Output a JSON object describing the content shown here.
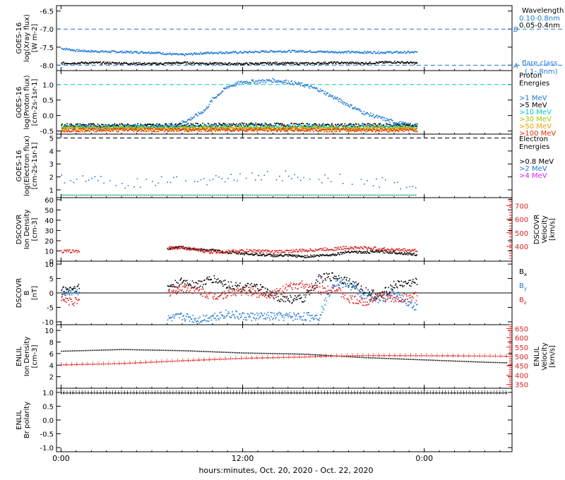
{
  "xaxis": {
    "label": "hours:minutes, Oct. 20, 2020 - Oct. 22, 2020",
    "ticks": [
      {
        "hour": 0,
        "label": "0:00"
      },
      {
        "hour": 12,
        "label": "12:00"
      },
      {
        "hour": 24,
        "label": "0:00"
      }
    ],
    "xlim_hours": [
      -0.3,
      29.8
    ]
  },
  "chart_data": [
    {
      "id": "xray",
      "type": "line",
      "ylabel": [
        "GOES-16",
        "log(Xray flux)",
        "[W m-2]"
      ],
      "ylim": [
        -8.15,
        -6.35
      ],
      "yticks": [
        "-6.5",
        "-7.0",
        "-7.5",
        "-8.0"
      ],
      "ytick_values": [
        -6.5,
        -7.0,
        -7.5,
        -8.0
      ],
      "legend_title": "Wavelength",
      "flare_lines": [
        {
          "y": -7.0,
          "label": "B"
        },
        {
          "y": -8.0,
          "label": "A"
        }
      ],
      "flare_class_label": [
        "flare class",
        "(.1-.8nm)"
      ],
      "series": [
        {
          "name": "0.10-0.8nm",
          "color": "#1e78d2",
          "x": [
            0,
            1,
            2,
            4,
            6,
            7,
            8,
            9,
            10,
            12,
            14,
            16,
            18,
            20,
            22,
            23.5
          ],
          "y": [
            -7.52,
            -7.58,
            -7.6,
            -7.62,
            -7.63,
            -7.67,
            -7.7,
            -7.66,
            -7.64,
            -7.63,
            -7.6,
            -7.6,
            -7.62,
            -7.63,
            -7.63,
            -7.63
          ]
        },
        {
          "name": "0.05-0.4nm",
          "color": "#000000",
          "x": [
            0,
            2,
            4,
            6,
            8,
            10,
            12,
            14,
            16,
            18,
            20,
            22,
            23.5
          ],
          "y": [
            -7.93,
            -7.92,
            -7.93,
            -7.95,
            -7.92,
            -7.94,
            -7.95,
            -7.93,
            -7.94,
            -7.92,
            -7.93,
            -7.9,
            -7.93
          ]
        }
      ]
    },
    {
      "id": "proton",
      "type": "scatter",
      "ylabel": [
        "GOES-16",
        "log(Proton flux)",
        "[cm-2s-1sr-1]"
      ],
      "ylim": [
        -0.6,
        1.45
      ],
      "yticks": [
        "1.0",
        "0.5",
        "0.0",
        "-0.5"
      ],
      "ytick_values": [
        1.0,
        0.5,
        0.0,
        -0.5
      ],
      "legend_title": [
        "Proton",
        "Energies"
      ],
      "ref_line": 1.0,
      "series": [
        {
          "name": ">1 MeV",
          "color": "#1e78d2",
          "x": [
            0,
            6,
            7.5,
            8.5,
            9.5,
            10,
            11,
            12,
            13,
            14,
            15,
            16,
            17,
            18,
            19,
            20,
            21,
            22,
            23.5
          ],
          "y": [
            -0.35,
            -0.33,
            -0.3,
            -0.1,
            0.2,
            0.55,
            0.95,
            1.1,
            1.12,
            1.15,
            1.1,
            1.0,
            0.85,
            0.6,
            0.35,
            0.1,
            -0.05,
            -0.2,
            -0.33
          ]
        },
        {
          "name": ">5 MeV",
          "color": "#000000",
          "x": [
            0,
            6,
            12,
            18,
            23.5
          ],
          "y": [
            -0.3,
            -0.3,
            -0.28,
            -0.3,
            -0.3
          ]
        },
        {
          "name": ">10 MeV",
          "color": "#00c8c8",
          "x": [
            0,
            6,
            12,
            18,
            23.5
          ],
          "y": [
            -0.35,
            -0.35,
            -0.34,
            -0.35,
            -0.35
          ]
        },
        {
          "name": ">30 MeV",
          "color": "#a0c800",
          "x": [
            0,
            6,
            12,
            18,
            23.5
          ],
          "y": [
            -0.4,
            -0.39,
            -0.4,
            -0.4,
            -0.4
          ]
        },
        {
          "name": ">50 MeV",
          "color": "#f0a000",
          "x": [
            0,
            6,
            12,
            18,
            23.5
          ],
          "y": [
            -0.42,
            -0.42,
            -0.41,
            -0.42,
            -0.42
          ]
        },
        {
          "name": ">100 MeV",
          "color": "#e03000",
          "x": [
            0,
            6,
            12,
            18,
            23.5
          ],
          "y": [
            -0.45,
            -0.45,
            -0.44,
            -0.45,
            -0.45
          ]
        }
      ]
    },
    {
      "id": "electron",
      "type": "scatter",
      "ylabel": [
        "GOES-16",
        "log(Electron flux)",
        "[cm-2s-1sr-1]"
      ],
      "ylim": [
        0.4,
        5.3
      ],
      "yticks": [
        "1",
        "2",
        "3",
        "4",
        "5"
      ],
      "ytick_values": [
        1,
        2,
        3,
        4,
        5
      ],
      "legend_title": [
        "Electron",
        "Energies"
      ],
      "ref_line": 5.0,
      "series": [
        {
          "name": ">0.8 MeV",
          "color": "#000000",
          "x": [],
          "y": []
        },
        {
          "name": ">2 MeV",
          "color": "#1e78d2",
          "x": [
            0,
            2,
            4,
            6,
            8,
            10,
            12,
            14,
            16,
            18,
            20,
            22,
            23.5
          ],
          "y": [
            1.8,
            2.0,
            1.5,
            1.7,
            2.0,
            1.8,
            2.0,
            2.2,
            2.0,
            1.9,
            1.7,
            1.5,
            1.3
          ]
        },
        {
          "name": ">4 MeV",
          "color": "#e020e0",
          "x": [],
          "y": []
        }
      ],
      "baseline": {
        "color": "#00a070",
        "y": 0.6
      }
    },
    {
      "id": "dscovr-density",
      "type": "line",
      "ylabel": [
        "DSCOVR",
        "Ion Density",
        "[cm-3]"
      ],
      "ylabel_right": [
        "DSCOVR",
        "Velocity",
        "[km/s]"
      ],
      "ylim": [
        0,
        62
      ],
      "yticks": [
        "0",
        "10",
        "20",
        "30",
        "40",
        "50",
        "60"
      ],
      "ytick_values": [
        0,
        10,
        20,
        30,
        40,
        50,
        60
      ],
      "ylim_right": [
        290,
        760
      ],
      "yticks_right": [
        "400",
        "500",
        "600",
        "700"
      ],
      "ytick_values_right": [
        400,
        500,
        600,
        700
      ],
      "series": [
        {
          "name": "Density",
          "color": "#000000",
          "axis": "left",
          "x": [
            7,
            8,
            9,
            10,
            11,
            12,
            13,
            14,
            15,
            16,
            17,
            18,
            19,
            20,
            21,
            22,
            23.5
          ],
          "y": [
            13,
            14,
            12,
            11,
            9,
            8,
            7,
            6,
            6,
            5,
            6,
            7,
            10,
            9,
            10,
            9,
            7
          ]
        },
        {
          "name": "Velocity",
          "color": "#e02020",
          "axis": "right",
          "x": [
            0,
            0.8,
            7,
            8,
            9,
            10,
            11,
            12,
            13,
            14,
            15,
            16,
            17,
            18,
            19,
            20,
            21,
            22,
            23.5
          ],
          "y": [
            365,
            368,
            390,
            395,
            375,
            360,
            365,
            370,
            370,
            362,
            368,
            372,
            380,
            385,
            395,
            392,
            385,
            378,
            372
          ]
        }
      ]
    },
    {
      "id": "dscovr-bfield",
      "type": "scatter",
      "ylabel": [
        "DSCOVR",
        "B",
        "[nT]"
      ],
      "ylim": [
        -11,
        11
      ],
      "yticks": [
        "-10",
        "-5",
        "0",
        "5",
        "10"
      ],
      "ytick_values": [
        -10,
        -5,
        0,
        5,
        10
      ],
      "series": [
        {
          "name": "Bx",
          "color": "#000000",
          "x": [
            0,
            1,
            7,
            8,
            9,
            10,
            11,
            12,
            13,
            14,
            15,
            16,
            17,
            18,
            19,
            20,
            21,
            22,
            23.5
          ],
          "y": [
            1,
            2,
            2,
            4,
            3,
            5,
            3,
            2,
            2,
            -1,
            -2,
            -2,
            5,
            6,
            4,
            1,
            -1,
            3,
            4
          ]
        },
        {
          "name": "By",
          "color": "#1e78d2",
          "x": [
            0,
            1,
            7,
            8,
            9,
            10,
            11,
            12,
            13,
            14,
            15,
            16,
            17,
            18,
            19,
            20,
            21,
            22,
            23.5
          ],
          "y": [
            0,
            1,
            -9,
            -8,
            -9,
            -8,
            -7,
            -8,
            -8,
            -8,
            -8,
            -8,
            -8,
            4,
            3,
            -1,
            -2,
            0,
            -5
          ]
        },
        {
          "name": "Bz",
          "color": "#e02020",
          "x": [
            0,
            1,
            7,
            8,
            9,
            10,
            11,
            12,
            13,
            14,
            15,
            16,
            17,
            18,
            19,
            20,
            21,
            22,
            23.5
          ],
          "y": [
            -2,
            -3,
            0,
            2,
            1,
            -1,
            0,
            1,
            0,
            0,
            2,
            3,
            1,
            2,
            -2,
            -3,
            -1,
            -2,
            -1
          ]
        }
      ]
    },
    {
      "id": "enlil-density",
      "type": "line",
      "ylabel": [
        "ENLIL",
        "Ion Density",
        "[cm-3]"
      ],
      "ylabel_right": [
        "ENLIL",
        "Velocity",
        "[km/s]"
      ],
      "ylim": [
        0,
        11
      ],
      "yticks": [
        "2",
        "4",
        "6",
        "8",
        "10"
      ],
      "ytick_values": [
        2,
        4,
        6,
        8,
        10
      ],
      "ylim_right": [
        330,
        670
      ],
      "yticks_right": [
        "350",
        "400",
        "450",
        "500",
        "550",
        "600",
        "650"
      ],
      "ytick_values_right": [
        350,
        400,
        450,
        500,
        550,
        600,
        650
      ],
      "series": [
        {
          "name": "Density",
          "color": "#000000",
          "axis": "left",
          "x": [
            0,
            4,
            8,
            12,
            16,
            20,
            24,
            28,
            29.5
          ],
          "y": [
            6.5,
            6.8,
            6.6,
            6.2,
            6.0,
            5.4,
            5.0,
            4.6,
            4.5
          ]
        },
        {
          "name": "Velocity",
          "color": "#e02020",
          "axis": "right",
          "x": [
            0,
            4,
            8,
            12,
            16,
            18,
            20,
            24,
            28,
            29.5
          ],
          "y": [
            458,
            465,
            480,
            493,
            500,
            505,
            508,
            507,
            505,
            504
          ]
        }
      ]
    },
    {
      "id": "enlil-polarity",
      "type": "line",
      "ylabel": [
        "ENLIL",
        "Br polarity"
      ],
      "ylim": [
        -1.15,
        1.15
      ],
      "yticks": [
        "1.0",
        "0.5",
        "0.0",
        "-0.5",
        "-1.0"
      ],
      "ytick_values": [
        1.0,
        0.5,
        0.0,
        -0.5,
        -1.0
      ],
      "series": [
        {
          "name": "Br polarity",
          "color": "#000000",
          "x": [
            0,
            29.5
          ],
          "y": [
            1,
            1
          ]
        }
      ]
    }
  ]
}
